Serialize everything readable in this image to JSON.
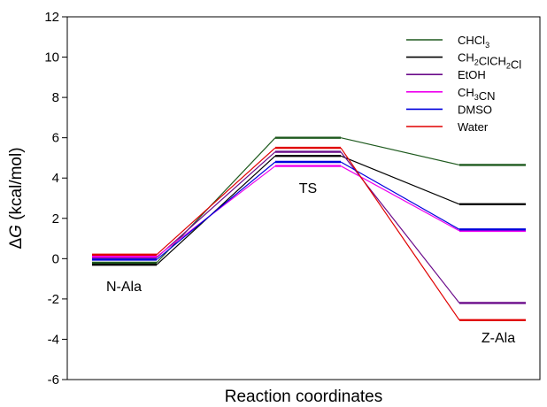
{
  "chart_data": {
    "type": "line",
    "title": "",
    "xlabel": "Reaction coordinates",
    "ylabel_prefix": "Δ",
    "ylabel_var": "G",
    "ylabel_suffix": " (kcal/mol)",
    "ylim": [
      -6,
      12
    ],
    "yticks": [
      -6,
      -4,
      -2,
      0,
      2,
      4,
      6,
      8,
      10,
      12
    ],
    "grid": false,
    "legend_position": "top-right",
    "states": [
      "N-Ala",
      "TS",
      "Z-Ala"
    ],
    "series": [
      {
        "name": "CHCl3",
        "legend_main": "CHCl",
        "legend_sub": "3",
        "legend_tail": "",
        "color": "#1e5a1e",
        "values": [
          -0.2,
          6.0,
          4.65
        ]
      },
      {
        "name": "CH2ClCH2Cl",
        "legend_main": "CH",
        "legend_sub": "2",
        "legend_tail": "ClCH",
        "legend_sub2": "2",
        "legend_tail2": "Cl",
        "color": "#000000",
        "values": [
          -0.3,
          5.1,
          2.7
        ]
      },
      {
        "name": "EtOH",
        "legend_main": "EtOH",
        "legend_sub": "",
        "legend_tail": "",
        "color": "#6a0a8a",
        "values": [
          0.05,
          5.3,
          -2.2
        ]
      },
      {
        "name": "CH3CN",
        "legend_main": "CH",
        "legend_sub": "3",
        "legend_tail": "CN",
        "color": "#ee00ee",
        "values": [
          0.1,
          4.6,
          1.38
        ]
      },
      {
        "name": "DMSO",
        "legend_main": "DMSO",
        "legend_sub": "",
        "legend_tail": "",
        "color": "#0000dd",
        "values": [
          -0.05,
          4.8,
          1.45
        ]
      },
      {
        "name": "Water",
        "legend_main": "Water",
        "legend_sub": "",
        "legend_tail": "",
        "color": "#e00000",
        "values": [
          0.2,
          5.5,
          -3.05
        ]
      }
    ]
  }
}
